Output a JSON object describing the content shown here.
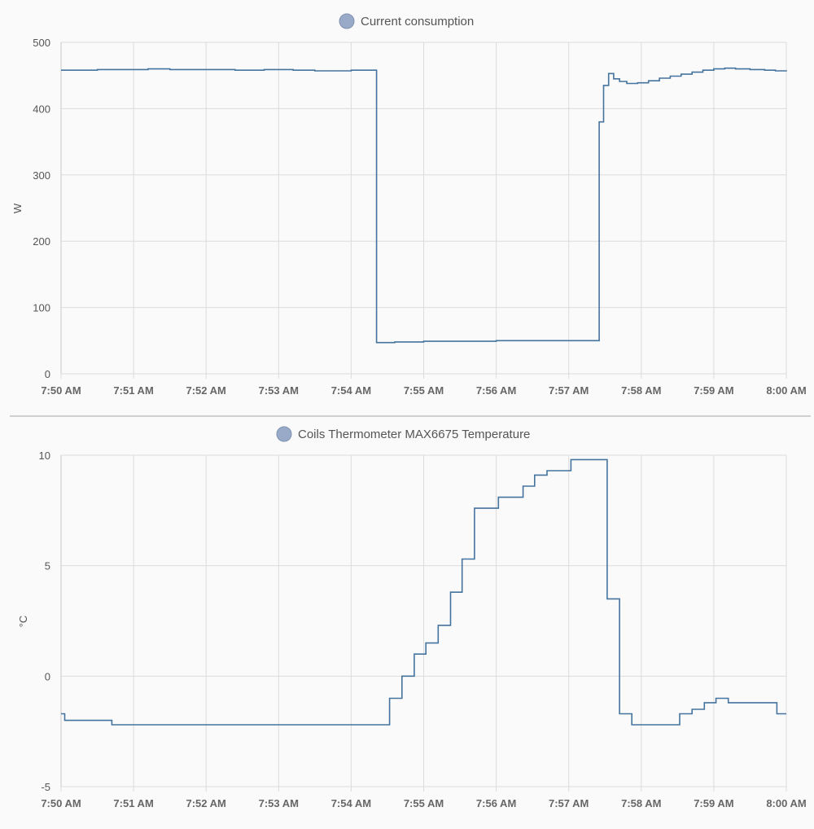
{
  "colors": {
    "series": "#44739e",
    "legend_dot": "#98aac7"
  },
  "chart_data": [
    {
      "type": "line",
      "step": true,
      "legend": "Current consumption",
      "legend_position": "top-center",
      "ylabel": "W",
      "ylim": [
        0,
        500
      ],
      "yticks": [
        0,
        100,
        200,
        300,
        400,
        500
      ],
      "xlim": [
        "7:50 AM",
        "8:00 AM"
      ],
      "xticks": [
        "7:50 AM",
        "7:51 AM",
        "7:52 AM",
        "7:53 AM",
        "7:54 AM",
        "7:55 AM",
        "7:56 AM",
        "7:57 AM",
        "7:58 AM",
        "7:59 AM",
        "8:00 AM"
      ],
      "grid": true,
      "series": [
        {
          "x": [
            0,
            0.5,
            1.0,
            1.2,
            1.5,
            2.0,
            2.4,
            2.8,
            3.2,
            3.5,
            4.0,
            4.35,
            4.35,
            4.6,
            5.0,
            5.5,
            6.0,
            6.5,
            7.0,
            7.1,
            7.2,
            7.35,
            7.42,
            7.42,
            7.48,
            7.55,
            7.62,
            7.7,
            7.8,
            7.95,
            8.1,
            8.25,
            8.4,
            8.55,
            8.7,
            8.85,
            9.0,
            9.15,
            9.3,
            9.5,
            9.7,
            9.85,
            10.0
          ],
          "y": [
            458,
            459,
            459,
            460,
            459,
            459,
            458,
            459,
            458,
            457,
            458,
            458,
            47,
            48,
            49,
            49,
            50,
            50,
            50,
            50,
            50,
            50,
            50,
            380,
            435,
            453,
            445,
            441,
            438,
            439,
            442,
            446,
            449,
            452,
            455,
            458,
            460,
            461,
            460,
            459,
            458,
            457,
            456
          ]
        }
      ]
    },
    {
      "type": "line",
      "step": true,
      "legend": "Coils Thermometer MAX6675 Temperature",
      "legend_position": "top-center",
      "ylabel": "°C",
      "ylim": [
        -5,
        10
      ],
      "yticks": [
        -5,
        0,
        5,
        10
      ],
      "xlim": [
        "7:50 AM",
        "8:00 AM"
      ],
      "xticks": [
        "7:50 AM",
        "7:51 AM",
        "7:52 AM",
        "7:53 AM",
        "7:54 AM",
        "7:55 AM",
        "7:56 AM",
        "7:57 AM",
        "7:58 AM",
        "7:59 AM",
        "8:00 AM"
      ],
      "grid": true,
      "series": [
        {
          "x": [
            0,
            0.05,
            0.7,
            4.53,
            4.7,
            4.87,
            5.03,
            5.2,
            5.37,
            5.53,
            5.7,
            6.03,
            6.37,
            6.53,
            6.7,
            7.03,
            7.53,
            7.7,
            7.87,
            8.53,
            8.7,
            8.87,
            9.03,
            9.2,
            9.87,
            10.0
          ],
          "y": [
            -1.7,
            -2.0,
            -2.2,
            -1.0,
            0.0,
            1.0,
            1.5,
            2.3,
            3.8,
            5.3,
            7.6,
            8.1,
            8.6,
            9.1,
            9.3,
            9.8,
            3.5,
            -1.7,
            -2.2,
            -1.7,
            -1.5,
            -1.2,
            -1.0,
            -1.2,
            -1.7,
            -1.7
          ]
        }
      ]
    }
  ]
}
